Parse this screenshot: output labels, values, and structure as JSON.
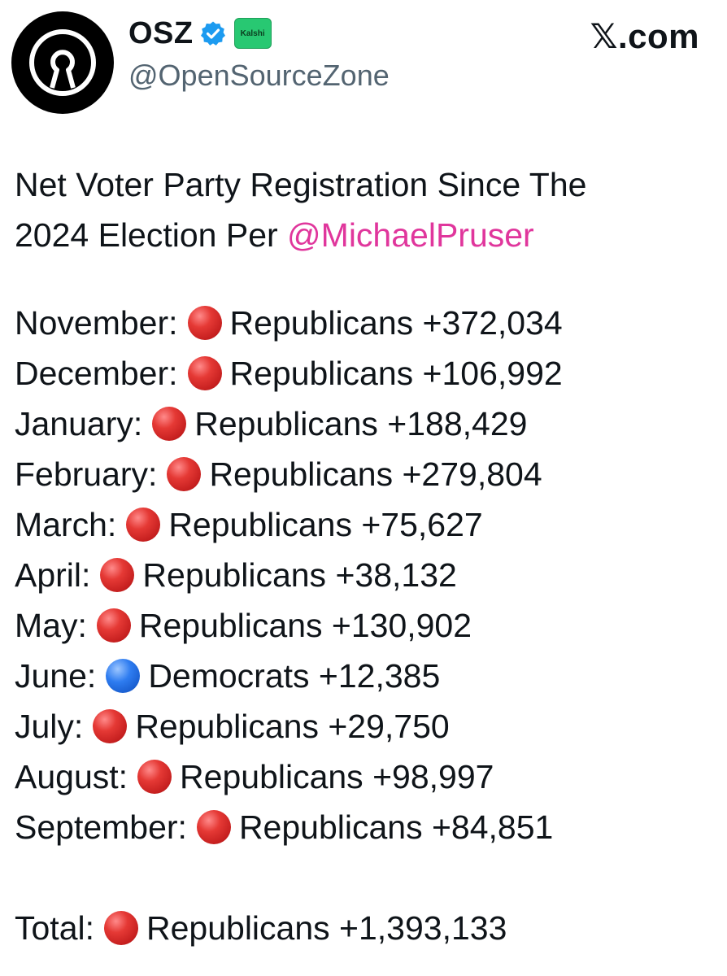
{
  "header": {
    "display_name": "OSZ",
    "affiliate_badge": "Kalshi",
    "handle": "@OpenSourceZone",
    "site": "𝕏.com",
    "avatar_icon": "open-source-logo-icon",
    "verified_icon": "verified-badge-icon",
    "verified_color": "#1d9bf0"
  },
  "post": {
    "intro_text": "Net Voter Party Registration Since The",
    "intro_text_2": "2024 Election Per ",
    "mention": "@MichaelPruser",
    "mention_color": "#e0369c",
    "entries": [
      {
        "month": "November:",
        "party_dot": "red",
        "text": "Republicans +372,034"
      },
      {
        "month": "December:",
        "party_dot": "red",
        "text": "Republicans +106,992"
      },
      {
        "month": "January:",
        "party_dot": "red",
        "text": "Republicans +188,429"
      },
      {
        "month": "February:",
        "party_dot": "red",
        "text": "Republicans +279,804"
      },
      {
        "month": "March:",
        "party_dot": "red",
        "text": "Republicans +75,627"
      },
      {
        "month": "April:",
        "party_dot": "red",
        "text": "Republicans +38,132"
      },
      {
        "month": "May:",
        "party_dot": "red",
        "text": "Republicans +130,902"
      },
      {
        "month": "June:",
        "party_dot": "blue",
        "text": "Democrats +12,385"
      },
      {
        "month": "July:",
        "party_dot": "red",
        "text": "Republicans +29,750"
      },
      {
        "month": "August:",
        "party_dot": "red",
        "text": "Republicans +98,997"
      },
      {
        "month": "September:",
        "party_dot": "red",
        "text": "Republicans +84,851"
      }
    ],
    "total": {
      "label": "Total:",
      "party_dot": "red",
      "text": "Republicans +1,393,133"
    }
  }
}
